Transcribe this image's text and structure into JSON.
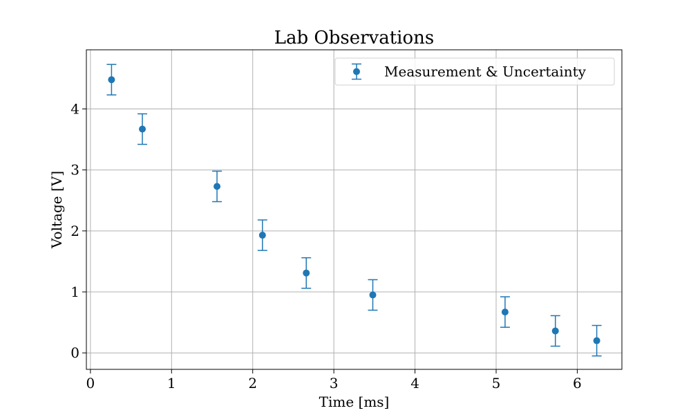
{
  "chart_data": {
    "type": "scatter",
    "title": "Lab Observations",
    "xlabel": "Time [ms]",
    "ylabel": "Voltage [V]",
    "xlim": [
      -0.05,
      6.55
    ],
    "ylim": [
      -0.27,
      4.97
    ],
    "xticks": [
      0,
      1,
      2,
      3,
      4,
      5,
      6
    ],
    "yticks": [
      0,
      1,
      2,
      3,
      4
    ],
    "grid": true,
    "legend_position": "top-right",
    "series": [
      {
        "name": "Measurement & Uncertainty",
        "color": "#1f77b4",
        "marker": "circle",
        "x": [
          0.26,
          0.64,
          1.56,
          2.12,
          2.66,
          3.48,
          5.11,
          5.73,
          6.24
        ],
        "y": [
          4.48,
          3.67,
          2.73,
          1.93,
          1.31,
          0.95,
          0.67,
          0.36,
          0.2
        ],
        "yerr": [
          0.25,
          0.25,
          0.25,
          0.25,
          0.25,
          0.25,
          0.25,
          0.25,
          0.25
        ]
      }
    ]
  }
}
